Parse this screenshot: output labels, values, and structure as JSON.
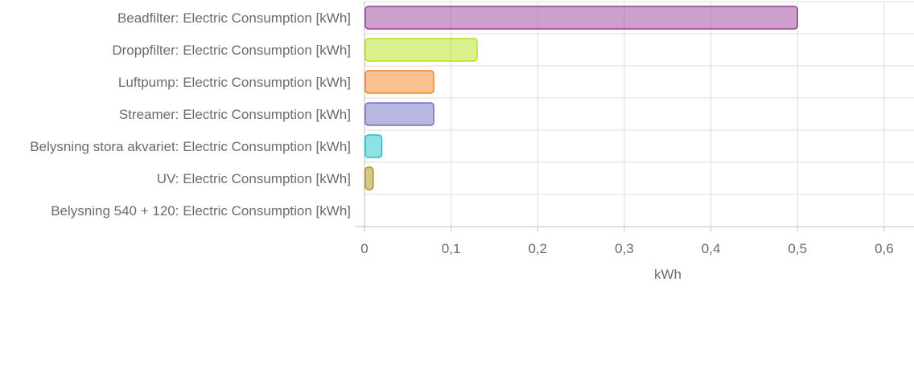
{
  "chart_data": {
    "type": "bar",
    "orientation": "horizontal",
    "categories": [
      "Beadfilter: Electric Consumption [kWh]",
      "Droppfilter: Electric Consumption [kWh]",
      "Luftpump: Electric Consumption [kWh]",
      "Streamer: Electric Consumption [kWh]",
      "Belysning stora akvariet: Electric Consumption [kWh]",
      "UV: Electric Consumption [kWh]",
      "Belysning 540 + 120: Electric Consumption [kWh]"
    ],
    "values": [
      0.5,
      0.13,
      0.08,
      0.08,
      0.02,
      0.01,
      0
    ],
    "bar_colors": [
      "#9b3f9b",
      "#b3e21a",
      "#f5821f",
      "#7070c0",
      "#1cc7c7",
      "#a8941c",
      "#9e9e9e"
    ],
    "xlabel": "kWh",
    "ylabel": "",
    "xlim": [
      0,
      0.63
    ],
    "x_ticks": [
      0,
      0.1,
      0.2,
      0.3,
      0.4,
      0.5,
      0.6
    ],
    "x_tick_labels": [
      "0",
      "0,1",
      "0,2",
      "0,3",
      "0,4",
      "0,5",
      "0,6"
    ],
    "grid": true,
    "legend": "none"
  }
}
